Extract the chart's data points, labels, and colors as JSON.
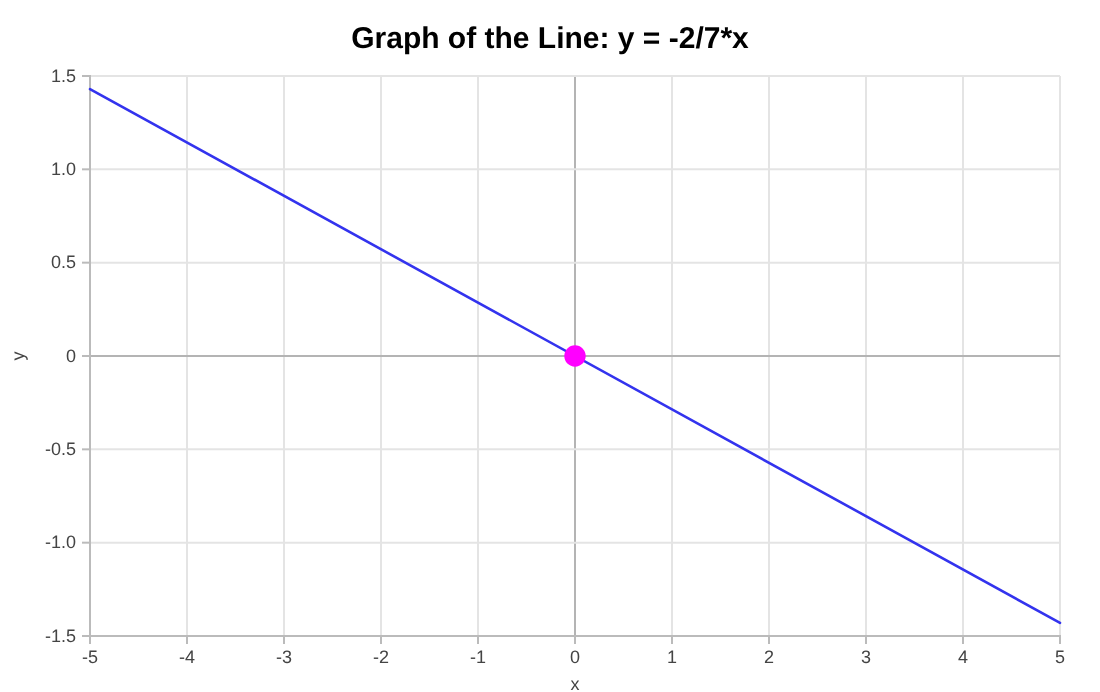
{
  "chart_data": {
    "type": "line",
    "title": "Graph of the Line: y  = -2/7*x",
    "xlabel": "x",
    "ylabel": "y",
    "xlim": [
      -5,
      5
    ],
    "xticks": [
      -5,
      -4,
      -3,
      -2,
      -1,
      0,
      1,
      2,
      3,
      4,
      5
    ],
    "ylim": [
      -1.5,
      1.5
    ],
    "yticks": [
      -1.5,
      {
        "value": -1,
        "label": "-1.0"
      },
      -0.5,
      0,
      0.5,
      {
        "value": 1,
        "label": "1.0"
      },
      1.5
    ],
    "grid": true,
    "series": [
      {
        "color": "#3333ee",
        "x": [
          -5,
          5
        ],
        "values": [
          1.43,
          -1.43
        ],
        "marker": "none"
      },
      {
        "type": "scatter",
        "color": "#ff00ff",
        "x": [
          0
        ],
        "values": [
          0
        ],
        "marker": "circle"
      }
    ]
  }
}
